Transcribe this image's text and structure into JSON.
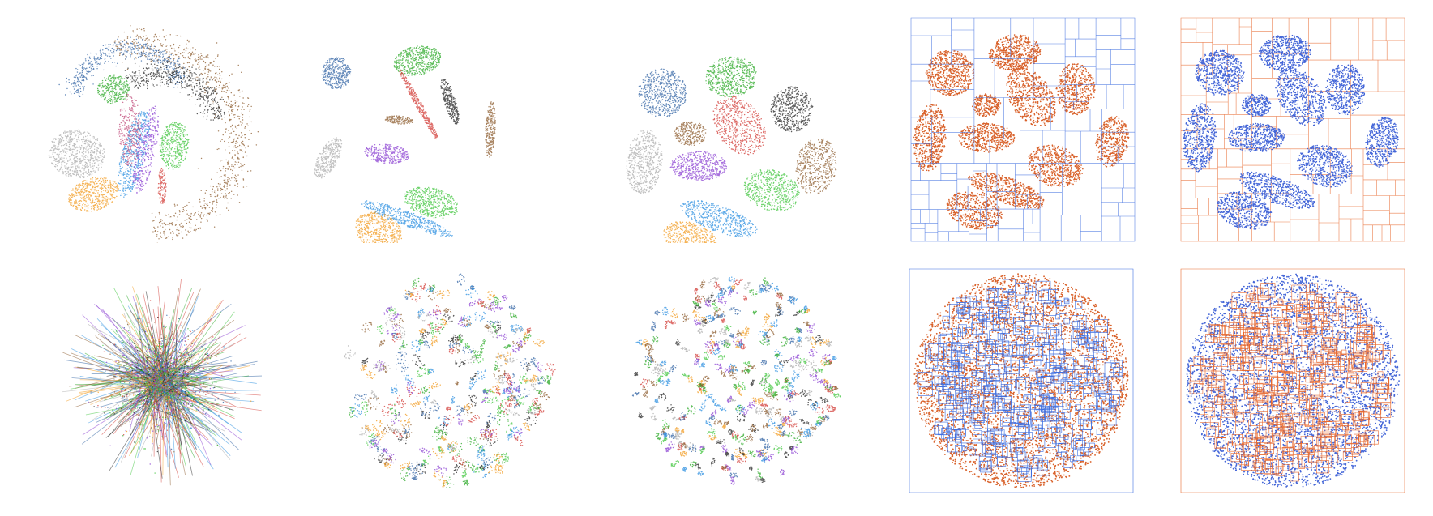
{
  "palette": {
    "cluster_colors": [
      "#2f62a3",
      "#2aa826",
      "#d23b35",
      "#222222",
      "#8b5a2b",
      "#a9a9a9",
      "#8a3fd1",
      "#f29a1e",
      "#2b8fe0",
      "#3cc43a"
    ],
    "tree_blue": "#3f6fe0",
    "tree_orange": "#e86a30",
    "fill_orange": "#d9622b",
    "fill_blue": "#4466d8"
  },
  "panels": [
    {
      "id": "r0c0",
      "kind": "scatter-loose"
    },
    {
      "id": "r0c1",
      "kind": "scatter-separated"
    },
    {
      "id": "r0c2",
      "kind": "scatter-clusters"
    },
    {
      "id": "r0c3",
      "kind": "tree-blue-boxes"
    },
    {
      "id": "r0c4",
      "kind": "tree-orange-boxes"
    },
    {
      "id": "r1c0",
      "kind": "scatter-hairball"
    },
    {
      "id": "r1c1",
      "kind": "scatter-disk-fragments"
    },
    {
      "id": "r1c2",
      "kind": "scatter-disk-clusters"
    },
    {
      "id": "r1c3",
      "kind": "tree-blue-disk"
    },
    {
      "id": "r1c4",
      "kind": "tree-orange-disk"
    }
  ]
}
